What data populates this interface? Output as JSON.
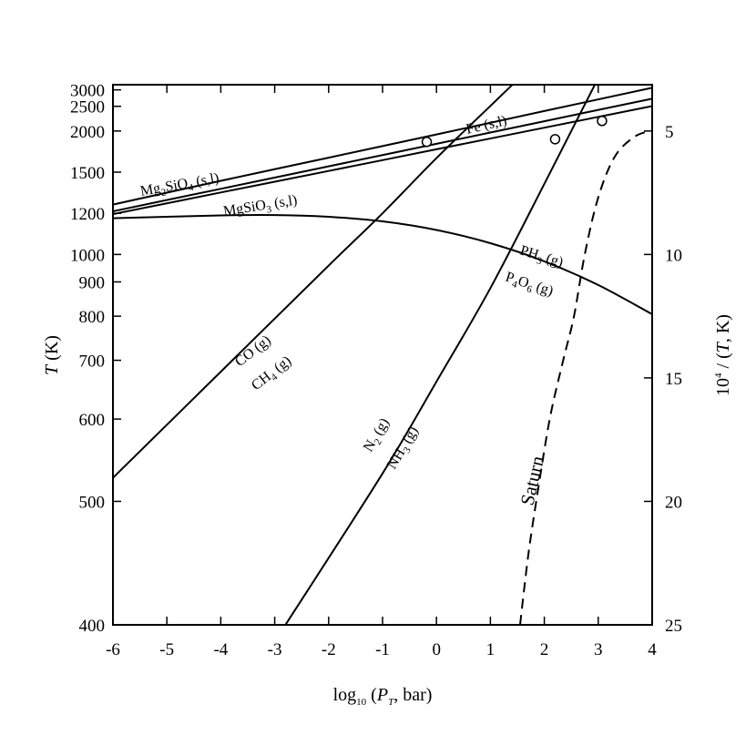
{
  "chart_data": {
    "type": "line",
    "xlabel": {
      "main": "log",
      "sub": "10",
      "rest_open": " (",
      "var": "P",
      "var_sub": "T",
      "rest_close": ", bar)"
    },
    "ylabel_left": {
      "var": "T",
      "unit": " (K)"
    },
    "ylabel_right": {
      "prefix": "10",
      "sup": "4",
      "mid": " / (",
      "var": "T",
      "unit": ", K)"
    },
    "xlim": [
      -6,
      4
    ],
    "ylim_K": [
      400,
      3200
    ],
    "y_scale": "reciprocal",
    "x_ticks": [
      "-6",
      "-5",
      "-4",
      "-3",
      "-2",
      "-1",
      "0",
      "1",
      "2",
      "3",
      "4"
    ],
    "y_ticks_left": [
      400,
      500,
      600,
      700,
      800,
      900,
      1000,
      1200,
      1500,
      2000,
      2500,
      3000
    ],
    "y_ticks_right": [
      5,
      10,
      15,
      20,
      25
    ],
    "series": [
      {
        "key": "fe",
        "style": "solid",
        "points": [
          [
            -6,
            1253
          ],
          [
            -4,
            1425
          ],
          [
            -2,
            1645
          ],
          [
            0,
            1946
          ],
          [
            2,
            2385
          ],
          [
            4,
            3080
          ]
        ]
      },
      {
        "key": "mg2sio4",
        "style": "solid",
        "points": [
          [
            -6,
            1212
          ],
          [
            -4,
            1362
          ],
          [
            -2,
            1555
          ],
          [
            0,
            1812
          ],
          [
            2,
            2172
          ],
          [
            4,
            2710
          ]
        ]
      },
      {
        "key": "mgsio3",
        "style": "solid",
        "points": [
          [
            -6,
            1195
          ],
          [
            -4,
            1335
          ],
          [
            -2,
            1511
          ],
          [
            0,
            1742
          ],
          [
            2,
            2055
          ],
          [
            4,
            2506
          ]
        ]
      },
      {
        "key": "co_ch4",
        "style": "solid",
        "points": [
          [
            -6,
            525
          ],
          [
            -4,
            678
          ],
          [
            -2,
            957
          ],
          [
            -1,
            1200
          ],
          [
            0,
            1640
          ],
          [
            1,
            2510
          ],
          [
            2,
            5300
          ]
        ]
      },
      {
        "key": "n2_nh3",
        "style": "solid",
        "points": [
          [
            -2.8,
            400
          ],
          [
            -1,
            530
          ],
          [
            0,
            660
          ],
          [
            1,
            880
          ],
          [
            2,
            1400
          ],
          [
            2.5,
            2000
          ],
          [
            3,
            3500
          ]
        ]
      },
      {
        "key": "ph3_p4o6",
        "style": "solid",
        "points": [
          [
            -6,
            1172
          ],
          [
            -4,
            1188
          ],
          [
            -3,
            1190
          ],
          [
            -2,
            1180
          ],
          [
            -1,
            1155
          ],
          [
            0,
            1110
          ],
          [
            1,
            1048
          ],
          [
            2,
            973
          ],
          [
            3,
            890
          ],
          [
            4,
            805
          ]
        ]
      },
      {
        "key": "saturn",
        "style": "dashed",
        "points": [
          [
            1.55,
            400
          ],
          [
            1.7,
            450
          ],
          [
            1.85,
            500
          ],
          [
            2.1,
            600
          ],
          [
            2.35,
            700
          ],
          [
            2.55,
            800
          ],
          [
            2.75,
            1000
          ],
          [
            3,
            1300
          ],
          [
            3.3,
            1650
          ],
          [
            3.65,
            1900
          ],
          [
            3.95,
            2000
          ]
        ]
      }
    ],
    "markers": [
      {
        "x": -0.18,
        "y": 1838
      },
      {
        "x": 2.2,
        "y": 1875
      },
      {
        "x": 3.07,
        "y": 2178
      }
    ],
    "labels": {
      "fe": "Fe (s,l)",
      "mg2sio4": {
        "a": "Mg",
        "b": "2",
        "c": "SiO",
        "d": "4",
        "e": " (s,l)"
      },
      "mgsio3": {
        "a": "MgSiO",
        "b": "3",
        "c": " (s,l)"
      },
      "co": "CO (g)",
      "ch4": {
        "a": "CH",
        "b": "4",
        "c": " (g)"
      },
      "n2": {
        "a": "N",
        "b": "2",
        "c": " (g)"
      },
      "nh3": {
        "a": "NH",
        "b": "3",
        "c": " (g)"
      },
      "ph3": {
        "a": "PH",
        "b": "3",
        "c": " (g)"
      },
      "p4o6": {
        "a": "P",
        "b": "4",
        "c": "O",
        "d": "6",
        "e": " (g)"
      },
      "saturn": "Saturn"
    },
    "grid": false,
    "legend": "none"
  }
}
